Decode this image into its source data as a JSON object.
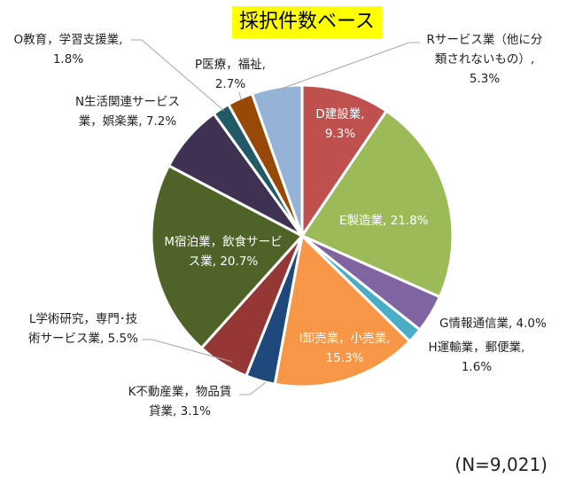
{
  "chart_data": {
    "type": "pie",
    "title": "採択件数ベース",
    "note": "(N=9,021)",
    "start_angle_deg": 0,
    "direction": "clockwise",
    "slices": [
      {
        "name": "D建設業",
        "value": 9.3,
        "label": "D建設業,|9.3%",
        "color": "#c0504d"
      },
      {
        "name": "E製造業",
        "value": 21.8,
        "label": "E製造業, 21.8%",
        "color": "#9bbb59"
      },
      {
        "name": "G情報通信業",
        "value": 4.0,
        "label": "G情報通信業, 4.0%",
        "color": "#8064a2"
      },
      {
        "name": "H運輸業，郵便業",
        "value": 1.6,
        "label": "H運輸業，郵便業,|1.6%",
        "color": "#4bacc6"
      },
      {
        "name": "I卸売業，小売業",
        "value": 15.3,
        "label": "I卸売業，小売業,|15.3%",
        "color": "#f79646"
      },
      {
        "name": "K不動産業，物品賃貸業",
        "value": 3.1,
        "label": "K不動産業，物品賃|貸業, 3.1%",
        "color": "#1f497d"
      },
      {
        "name": "L学術研究，専門・技術サービス業",
        "value": 5.5,
        "label": "L学術研究，専門･技|術サービス業, 5.5%",
        "color": "#953735"
      },
      {
        "name": "M宿泊業，飲食サービス業",
        "value": 20.7,
        "label": "M宿泊業，飲食サービ|ス業, 20.7%",
        "color": "#4f6228"
      },
      {
        "name": "N生活関連サービス業，娯楽業",
        "value": 7.2,
        "label": "N生活関連サービス|業，娯楽業, 7.2%",
        "color": "#3f3151"
      },
      {
        "name": "O教育，学習支援業",
        "value": 1.8,
        "label": "O教育，学習支援業,|1.8%",
        "color": "#215967"
      },
      {
        "name": "P医療，福祉",
        "value": 2.7,
        "label": "P医療，福祉,|2.7%",
        "color": "#984807"
      },
      {
        "name": "Rサービス業（他に分類されないもの）",
        "value": 5.3,
        "label": "Rサービス業（他に分|類されないもの）,|5.3%",
        "color": "#95b3d7"
      }
    ]
  },
  "labels": {
    "d": [
      "D建設業,",
      "9.3%"
    ],
    "e": [
      "E製造業, 21.8%"
    ],
    "g": [
      "G情報通信業, 4.0%"
    ],
    "h": [
      "H運輸業，郵便業,",
      "1.6%"
    ],
    "i": [
      "I卸売業，小売業,",
      "15.3%"
    ],
    "k": [
      "K不動産業，物品賃",
      "貸業, 3.1%"
    ],
    "l": [
      "L学術研究，専門･技",
      "術サービス業, 5.5%"
    ],
    "m": [
      "M宿泊業，飲食サービ",
      "ス業, 20.7%"
    ],
    "n": [
      "N生活関連サービス",
      "業，娯楽業, 7.2%"
    ],
    "o": [
      "O教育，学習支援業,",
      "1.8%"
    ],
    "p": [
      "P医療，福祉,",
      "2.7%"
    ],
    "r": [
      "Rサービス業（他に分",
      "類されないもの）,",
      "5.3%"
    ]
  }
}
